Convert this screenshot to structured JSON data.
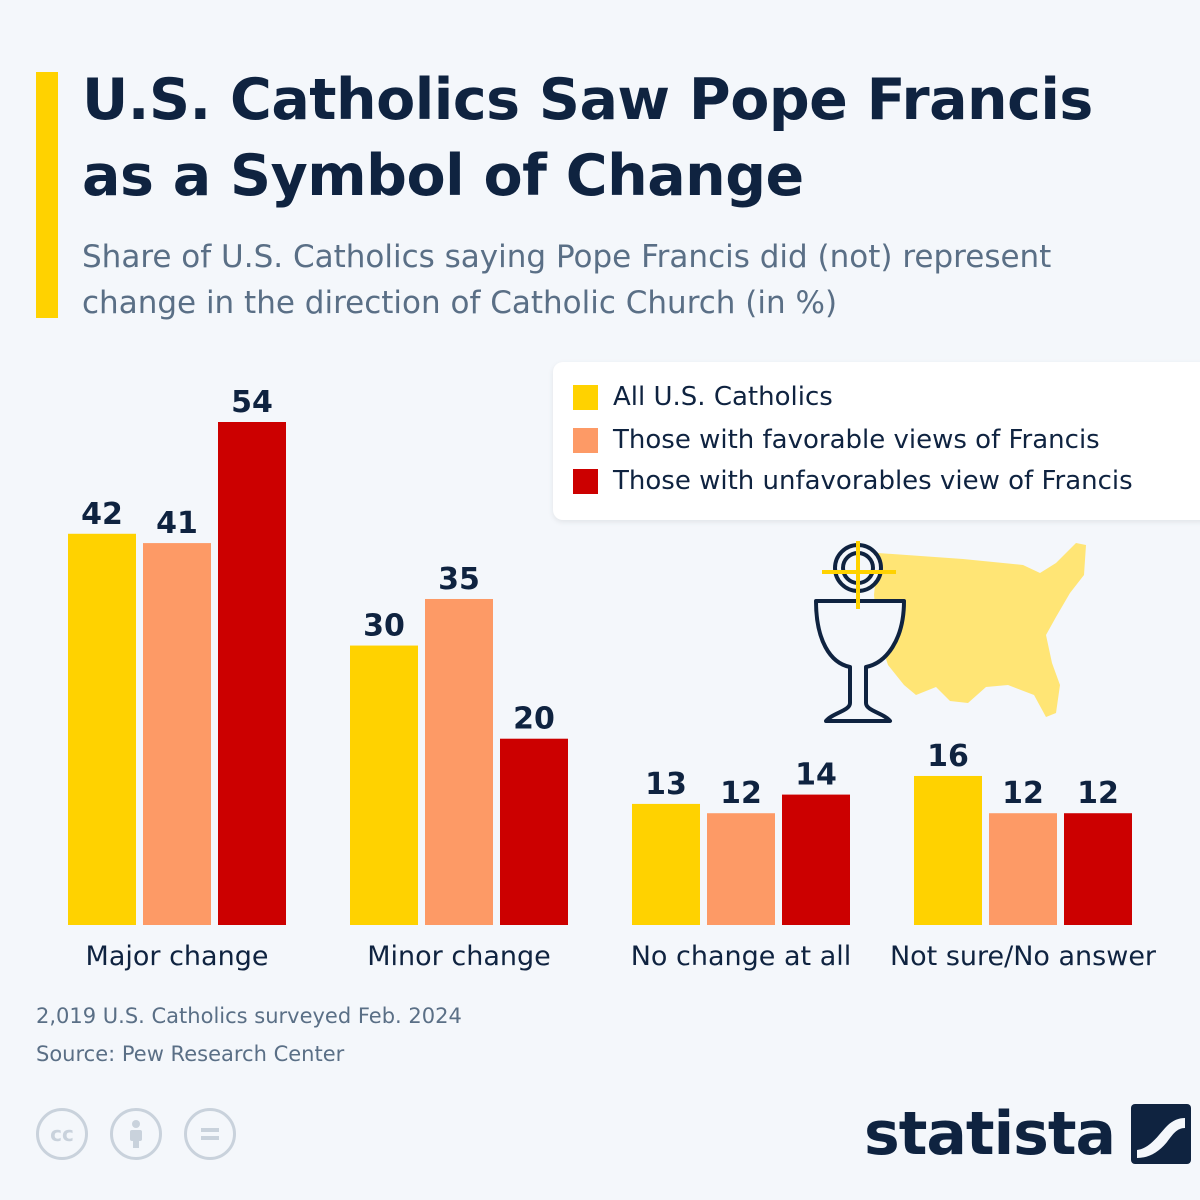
{
  "header": {
    "title": "U.S. Catholics Saw Pope Francis as a Symbol of Change",
    "subtitle": "Share of U.S. Catholics saying Pope Francis did (not) represent change in the direction of Catholic Church (in %)"
  },
  "colors": {
    "accent": "#ffd200",
    "series": [
      "#ffd200",
      "#fd9a66",
      "#cc0000"
    ],
    "text": "#0f2340",
    "muted": "#5a6f86",
    "map": "#ffe575"
  },
  "legend": {
    "items": [
      "All U.S. Catholics",
      "Those with favorable views of Francis",
      "Those with unfavorables view of Francis"
    ],
    "placement": "top-right"
  },
  "chart_data": {
    "type": "bar",
    "title": "U.S. Catholics Saw Pope Francis as a Symbol of Change",
    "subtitle": "Share of U.S. Catholics saying Pope Francis did (not) represent change in the direction of Catholic Church (in %)",
    "categories": [
      "Major change",
      "Minor change",
      "No change at all",
      "Not sure/No answer"
    ],
    "series": [
      {
        "name": "All U.S. Catholics",
        "values": [
          42,
          30,
          13,
          16
        ]
      },
      {
        "name": "Those with favorable views of Francis",
        "values": [
          41,
          35,
          12,
          12
        ]
      },
      {
        "name": "Those with unfavorables view of Francis",
        "values": [
          54,
          20,
          14,
          12
        ]
      }
    ],
    "xlabel": "",
    "ylabel": "",
    "ylim": [
      0,
      54
    ],
    "grid": false,
    "data_labels": true
  },
  "footer": {
    "note": "2,019 U.S. Catholics surveyed Feb. 2024",
    "source": "Source: Pew Research Center",
    "brand": "statista",
    "license_icons": [
      "cc-icon",
      "by-icon",
      "nd-icon"
    ]
  }
}
